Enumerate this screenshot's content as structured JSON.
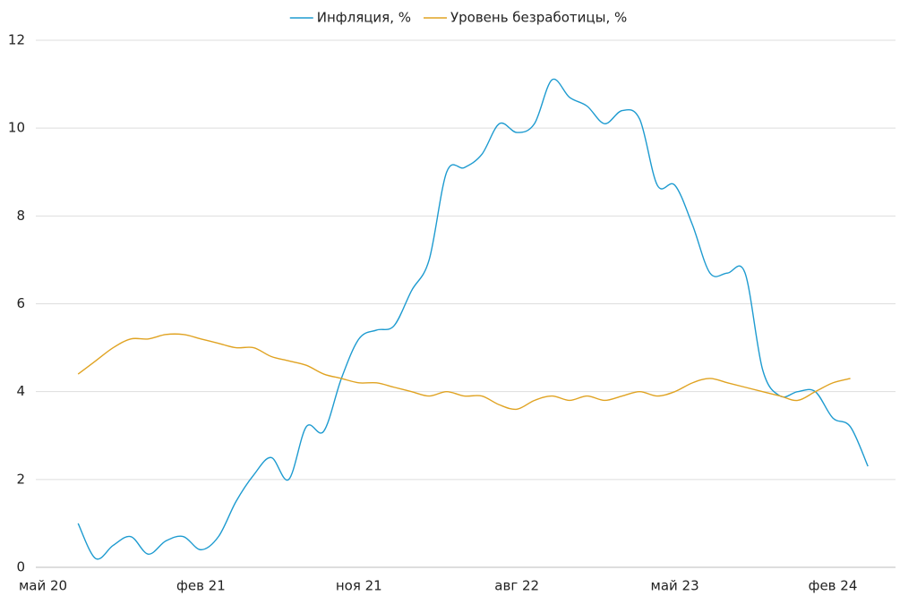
{
  "chart_data": {
    "type": "line",
    "categories": [
      "май 20",
      null,
      null,
      null,
      null,
      null,
      null,
      null,
      null,
      "фев 21",
      null,
      null,
      null,
      null,
      null,
      null,
      null,
      null,
      "ноя 21",
      null,
      null,
      null,
      null,
      null,
      null,
      null,
      null,
      "авг 22",
      null,
      null,
      null,
      null,
      null,
      null,
      null,
      null,
      "май 23",
      null,
      null,
      null,
      null,
      null,
      null,
      null,
      null,
      "фев 24",
      null,
      null
    ],
    "series": [
      {
        "name": "Инфляция, %",
        "color": "#1e9bd0",
        "values": [
          null,
          null,
          1.0,
          0.2,
          0.5,
          0.7,
          0.3,
          0.6,
          0.7,
          0.4,
          0.7,
          1.5,
          2.1,
          2.5,
          2.0,
          3.2,
          3.1,
          4.3,
          5.2,
          5.4,
          5.5,
          6.3,
          7.0,
          9.0,
          9.1,
          9.4,
          10.1,
          9.9,
          10.1,
          11.1,
          10.7,
          10.5,
          10.1,
          10.4,
          10.2,
          8.7,
          8.7,
          7.8,
          6.7,
          6.7,
          6.7,
          4.5,
          3.9,
          4.0,
          4.0,
          3.4,
          3.2,
          2.3
        ]
      },
      {
        "name": "Уровень безработицы, %",
        "color": "#e0a322",
        "values": [
          null,
          null,
          4.4,
          4.7,
          5.0,
          5.2,
          5.2,
          5.3,
          5.3,
          5.2,
          5.1,
          5.0,
          5.0,
          4.8,
          4.7,
          4.6,
          4.4,
          4.3,
          4.2,
          4.2,
          4.1,
          4.0,
          3.9,
          4.0,
          3.9,
          3.9,
          3.7,
          3.6,
          3.8,
          3.9,
          3.8,
          3.9,
          3.8,
          3.9,
          4.0,
          3.9,
          4.0,
          4.2,
          4.3,
          4.2,
          4.1,
          4.0,
          3.9,
          3.8,
          4.0,
          4.2,
          4.3,
          null
        ]
      }
    ],
    "ylim": [
      0,
      12
    ],
    "yticks": [
      0,
      2,
      4,
      6,
      8,
      10,
      12
    ],
    "grid": true,
    "legend": "top"
  }
}
